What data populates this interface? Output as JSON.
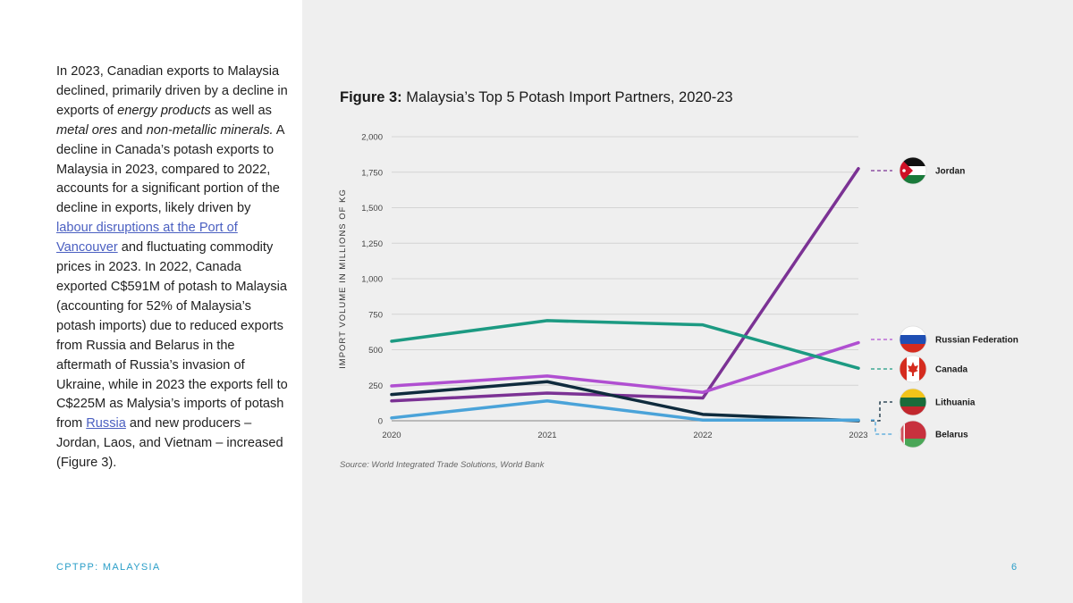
{
  "body": {
    "seg1": "In 2023, Canadian exports to Malaysia declined, primarily driven by a decline in exports of ",
    "em1": "energy products",
    "seg2": " as well as ",
    "em2": "metal ores",
    "seg3": " and ",
    "em3": "non-metallic minerals.",
    "seg4": " A decline in Canada’s potash exports to Malaysia in 2023, compared to 2022, accounts for a significant portion of the decline in exports, likely driven by ",
    "link1": "labour disruptions at the Port of Vancouver",
    "seg5": " and fluctuating commodity prices in 2023. In 2022, Canada exported C$591M of potash to Malaysia (accounting for 52% of Malaysia’s potash imports) due to reduced exports from Russia and Belarus in the aftermath of Russia’s invasion of Ukraine, while in 2023 the exports fell to C$225M as Malysia’s imports of potash from ",
    "link2": "Russia",
    "seg6": " and new producers – Jordan, Laos, and Vietnam – increased (Figure 3)."
  },
  "footer": {
    "left": "CPTPP: MALAYSIA",
    "page": "6"
  },
  "figure": {
    "label": "Figure 3:",
    "title": " Malaysia’s Top 5 Potash Import Partners, 2020-23",
    "source": "Source: World Integrated Trade Solutions, World Bank"
  },
  "chart_data": {
    "type": "line",
    "title": "Malaysia’s Top 5 Potash Import Partners, 2020-23",
    "xlabel": "",
    "ylabel": "IMPORT VOLUME IN MILLIONS OF KG",
    "x": [
      "2020",
      "2021",
      "2022",
      "2023"
    ],
    "ylim": [
      0,
      2000
    ],
    "yticks": [
      0,
      250,
      500,
      750,
      1000,
      1250,
      1500,
      1750,
      2000
    ],
    "ytick_labels": [
      "0",
      "250",
      "500",
      "750",
      "1,000",
      "1,250",
      "1,500",
      "1,750",
      "2,000"
    ],
    "grid": true,
    "legend": "right, labels with flag icons",
    "series": [
      {
        "name": "Jordan",
        "color": "#7b3294",
        "icon": "jordan-flag-icon",
        "values": [
          140,
          195,
          160,
          1775
        ]
      },
      {
        "name": "Russian Federation",
        "color": "#b04fd1",
        "icon": "russia-flag-icon",
        "values": [
          245,
          315,
          200,
          550
        ]
      },
      {
        "name": "Canada",
        "color": "#1c9a82",
        "icon": "canada-flag-icon",
        "values": [
          560,
          705,
          675,
          370
        ]
      },
      {
        "name": "Lithuania",
        "color": "#0f2b3d",
        "icon": "lithuania-flag-icon",
        "values": [
          185,
          275,
          45,
          0
        ]
      },
      {
        "name": "Belarus",
        "color": "#4aa3d9",
        "icon": "belarus-flag-icon",
        "values": [
          20,
          140,
          5,
          5
        ]
      }
    ]
  }
}
